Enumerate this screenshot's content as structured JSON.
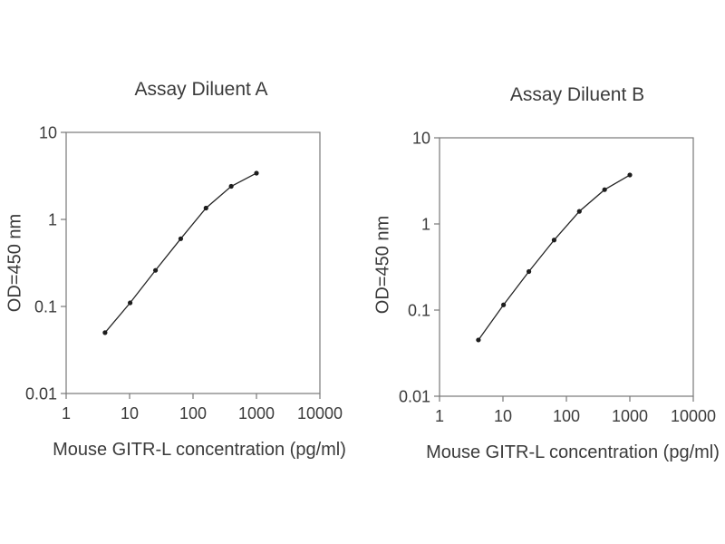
{
  "figure": {
    "background": "#ffffff",
    "text_color": "#3b3b3b",
    "axis_color": "#787878",
    "series_color": "#252525",
    "marker_color": "#1d1d1d"
  },
  "chart_data": [
    {
      "type": "line",
      "title": "Assay Diluent A",
      "xlabel": "Mouse GITR-L concentration (pg/ml)",
      "ylabel": "OD=450 nm",
      "xscale": "log",
      "yscale": "log",
      "xlim": [
        1,
        10000
      ],
      "ylim": [
        0.01,
        10
      ],
      "xticks": [
        1,
        10,
        100,
        1000,
        10000
      ],
      "xtick_labels": [
        "1",
        "10",
        "100",
        "1000",
        "10000"
      ],
      "yticks": [
        0.01,
        0.1,
        1,
        10
      ],
      "ytick_labels": [
        "0.01",
        "0.1",
        "1",
        "10"
      ],
      "grid": false,
      "legend": null,
      "marker": "circle",
      "x": [
        4.1,
        10.2,
        25.6,
        64,
        160,
        400,
        1000
      ],
      "y": [
        0.05,
        0.11,
        0.26,
        0.6,
        1.35,
        2.4,
        3.4
      ]
    },
    {
      "type": "line",
      "title": "Assay Diluent B",
      "xlabel": "Mouse GITR-L concentration (pg/ml)",
      "ylabel": "OD=450 nm",
      "xscale": "log",
      "yscale": "log",
      "xlim": [
        1,
        10000
      ],
      "ylim": [
        0.01,
        10
      ],
      "xticks": [
        1,
        10,
        100,
        1000,
        10000
      ],
      "xtick_labels": [
        "1",
        "10",
        "100",
        "1000",
        "10000"
      ],
      "yticks": [
        0.01,
        0.1,
        1,
        10
      ],
      "ytick_labels": [
        "0.01",
        "0.1",
        "1",
        "10"
      ],
      "grid": false,
      "legend": null,
      "marker": "circle",
      "x": [
        4.1,
        10.2,
        25.6,
        64,
        160,
        400,
        1000
      ],
      "y": [
        0.045,
        0.115,
        0.28,
        0.65,
        1.4,
        2.5,
        3.7
      ]
    }
  ]
}
